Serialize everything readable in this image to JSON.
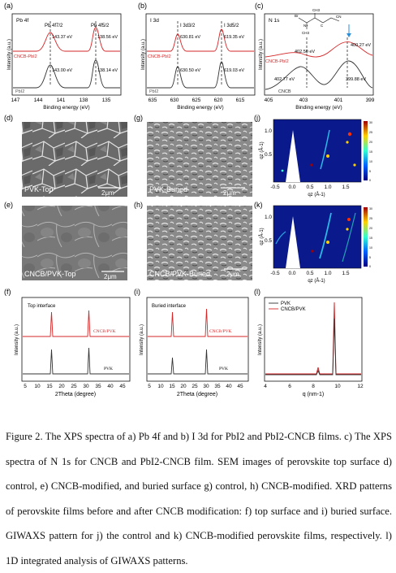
{
  "panels": {
    "a": {
      "letter": "(a)",
      "name": "Pb 4f",
      "peak_labels": [
        "Pb 4f7/2",
        "Pb 4f5/2"
      ],
      "series": [
        "CNCB-PbI2",
        "PbI2"
      ],
      "binding_energies": [
        "143.37 eV",
        "138.56 eV",
        "143.00 eV",
        "138.14 eV"
      ],
      "xticks": [
        "147",
        "144",
        "141",
        "138",
        "135"
      ],
      "xlabel": "Binding energy (eV)",
      "ylabel": "Intensity (a.u.)"
    },
    "b": {
      "letter": "(b)",
      "name": "I 3d",
      "peak_labels": [
        "I 3d3/2",
        "I 3d5/2"
      ],
      "series": [
        "CNCB-PbI2",
        "PbI2"
      ],
      "binding_energies": [
        "630.81 eV",
        "619.35 eV",
        "630.50 eV",
        "619.03 eV"
      ],
      "xticks": [
        "635",
        "630",
        "625",
        "620",
        "615"
      ],
      "xlabel": "Binding energy (eV)",
      "ylabel": "Intensity (a.u.)"
    },
    "c": {
      "letter": "(c)",
      "name": "N 1s",
      "series": [
        "CNCB-PbI2",
        "CNCB"
      ],
      "binding_energies": [
        "402.50 eV",
        "400.27 eV",
        "402.77 eV",
        "399.88 eV"
      ],
      "molecule_labels": [
        "Br",
        "CH3",
        "N+",
        "C",
        "CN",
        "CH3"
      ],
      "xticks": [
        "405",
        "403",
        "401",
        "399"
      ],
      "xlabel": "Binding energy (eV)",
      "ylabel": "Intensity (a.u.)"
    },
    "d": {
      "letter": "(d)",
      "label": "PVK-Top",
      "scalebar": "2μm"
    },
    "g": {
      "letter": "(g)",
      "label": "PVK-Buried",
      "scalebar": "2μm"
    },
    "e": {
      "letter": "(e)",
      "label": "CNCB/PVK-Top",
      "scalebar": "2μm"
    },
    "h": {
      "letter": "(h)",
      "label": "CNCB/PVK-Buried",
      "scalebar": "2μm"
    },
    "j": {
      "letter": "(j)",
      "xticks": [
        "-0.5",
        "0.0",
        "0.5",
        "1.0",
        "1.5"
      ],
      "yticks": [
        "1.0",
        "0.5"
      ],
      "xlabel": "qz (Å-1)",
      "ylabel": "qz (Å-1)",
      "colorbar_ticks": [
        "30",
        "25",
        "20",
        "15",
        "10",
        "5",
        "0"
      ]
    },
    "k": {
      "letter": "(k)",
      "xticks": [
        "-0.5",
        "0.0",
        "0.5",
        "1.0",
        "1.5"
      ],
      "yticks": [
        "1.0",
        "0.5"
      ],
      "xlabel": "qz (Å-1)",
      "ylabel": "qz (Å-1)",
      "colorbar_ticks": [
        "30",
        "25",
        "20",
        "15",
        "10",
        "5",
        "0"
      ]
    },
    "f": {
      "letter": "(f)",
      "title": "Top interface",
      "series": [
        "CNCB/PVK",
        "PVK"
      ],
      "xticks": [
        "5",
        "10",
        "15",
        "20",
        "25",
        "30",
        "35",
        "40",
        "45"
      ],
      "xlabel": "2Theta (degree)",
      "ylabel": "Intensity (a.u.)"
    },
    "i": {
      "letter": "(i)",
      "title": "Buried interface",
      "series": [
        "CNCB/PVK",
        "PVK"
      ],
      "xticks": [
        "5",
        "10",
        "15",
        "20",
        "25",
        "30",
        "35",
        "40",
        "45"
      ],
      "xlabel": "2Theta (degree)",
      "ylabel": "Intensity (a.u.)"
    },
    "l": {
      "letter": "(l)",
      "legend": [
        "PVK",
        "CNCB/PVK"
      ],
      "xticks": [
        "4",
        "6",
        "8",
        "10",
        "12"
      ],
      "xlabel": "q (nm-1)",
      "ylabel": "Intensity (a.u.)"
    }
  },
  "colors": {
    "modified": "#d62728",
    "control": "#333333",
    "giwaxs_bg": "#0a1a8c"
  },
  "caption": "Figure 2. The XPS spectra of a) Pb 4f and b) I 3d for PbI2 and PbI2-CNCB films. c) The XPS spectra of N 1s for CNCB and PbI2-CNCB film. SEM images of perovskite top surface d) control, e) CNCB-modified, and buried surface g) control, h) CNCB-modified. XRD patterns of perovskite films before and after CNCB modification: f) top surface and i) buried surface. GIWAXS pattern for j) the control and k) CNCB-modified perovskite films, respectively. l) 1D integrated analysis of GIWAXS patterns."
}
